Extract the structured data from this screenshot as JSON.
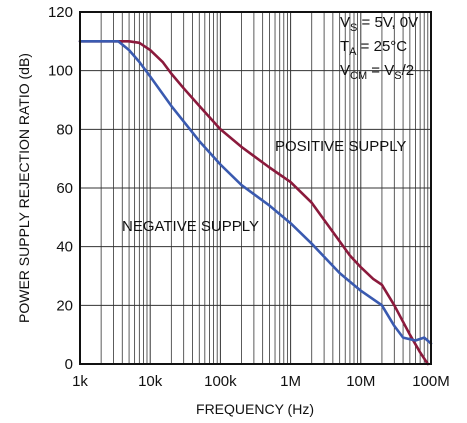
{
  "chart_data": {
    "type": "line",
    "title": "",
    "xlabel": "FREQUENCY (Hz)",
    "ylabel": "POWER SUPPLY REJECTION RATIO (dB)",
    "x_scale": "log",
    "xlim": [
      1000,
      100000000
    ],
    "ylim": [
      0,
      120
    ],
    "x_ticks": [
      {
        "value": 1000,
        "label": "1k"
      },
      {
        "value": 10000,
        "label": "10k"
      },
      {
        "value": 100000,
        "label": "100k"
      },
      {
        "value": 1000000,
        "label": "1M"
      },
      {
        "value": 10000000,
        "label": "10M"
      },
      {
        "value": 100000000,
        "label": "100M"
      }
    ],
    "y_ticks": [
      0,
      20,
      40,
      60,
      80,
      100,
      120
    ],
    "grid": true,
    "conditions": {
      "vs": {
        "main": "V",
        "sub": "S",
        "rest": " = 5V, 0V"
      },
      "ta": {
        "main": "T",
        "sub": "A",
        "rest": " = 25°C"
      },
      "vcm": {
        "main": "V",
        "sub": "CM",
        "mid": " = V",
        "sub2": "S",
        "rest": "/2"
      }
    },
    "series": [
      {
        "name": "POSITIVE SUPPLY",
        "color": "#8b1a3c",
        "x": [
          1000,
          3000,
          5000,
          7000,
          10000,
          15000,
          20000,
          30000,
          50000,
          100000,
          200000,
          500000,
          1000000,
          2000000,
          4000000,
          7000000,
          10000000,
          15000000,
          20000000,
          30000000,
          50000000,
          70000000,
          90000000
        ],
        "y": [
          110,
          110,
          110,
          109.5,
          107,
          103,
          99,
          94,
          88,
          80,
          74,
          67,
          62,
          55,
          45,
          37,
          33,
          29,
          27,
          20,
          10,
          4,
          0
        ]
      },
      {
        "name": "NEGATIVE SUPPLY",
        "color": "#3a5ab0",
        "x": [
          1000,
          2000,
          3500,
          5000,
          7000,
          10000,
          20000,
          50000,
          100000,
          200000,
          500000,
          1000000,
          2000000,
          5000000,
          10000000,
          20000000,
          30000000,
          40000000,
          60000000,
          80000000,
          100000000
        ],
        "y": [
          110,
          110,
          110,
          107,
          103,
          98,
          88,
          76,
          68,
          61,
          54,
          48,
          41,
          31,
          25,
          20,
          13,
          9,
          8,
          9,
          7
        ]
      }
    ]
  }
}
